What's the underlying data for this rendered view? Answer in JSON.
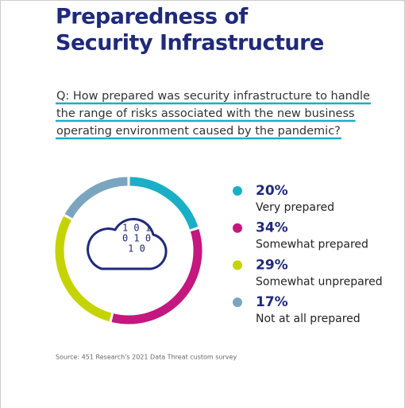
{
  "chart_data": {
    "type": "donut",
    "title_lines": [
      "Preparedness of",
      "Security Infrastructure"
    ],
    "question_lines": [
      "Q: How prepared was security infrastructure to handle",
      "the range of risks associated with the new business",
      "operating environment caused by the pandemic?"
    ],
    "categories": [
      "Very prepared",
      "Somewhat prepared",
      "Somewhat unprepared",
      "Not at all prepared"
    ],
    "values": [
      20,
      34,
      29,
      17
    ],
    "value_labels": [
      "20%",
      "34%",
      "29%",
      "17%"
    ],
    "colors": [
      "#1aafc6",
      "#c4177f",
      "#c5d300",
      "#7ba4bf"
    ],
    "icon_lines": [
      "1 0 1",
      "0 1 0",
      "1 0"
    ],
    "source": "Source: 451 Research's 2021 Data Threat custom survey"
  }
}
